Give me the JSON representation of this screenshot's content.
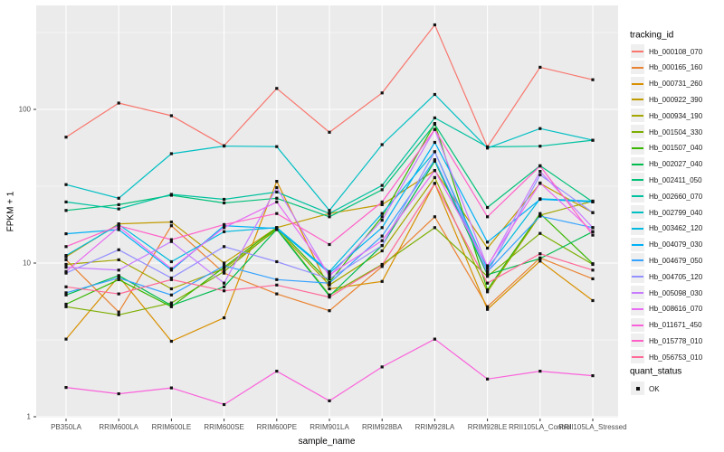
{
  "chart_data": {
    "type": "line",
    "title": "",
    "xlabel": "sample_name",
    "ylabel": "FPKM + 1",
    "y_scale": "log10",
    "y_ticks": [
      "1",
      "10",
      "100"
    ],
    "y_tick_values": [
      1,
      10,
      100
    ],
    "y_minor_values": [
      3.162,
      31.62,
      316.2
    ],
    "ylim": [
      1,
      500
    ],
    "grid": "on",
    "legend_position": "right",
    "legend_title": "tracking_id",
    "legend2_title": "quant_status",
    "legend2_items": [
      "OK"
    ],
    "marker": "square",
    "point_color": "#111111",
    "categories": [
      "PB350LA",
      "RRIM600LA",
      "RRIM600LE",
      "RRIM600SE",
      "RRIM600PE",
      "RRIM901LA",
      "RRIM928BA",
      "RRIM928LA",
      "RRIM928LE",
      "RRII105LA_Control",
      "RRII105LA_Stressed"
    ],
    "series": [
      {
        "name": "Hb_000108_070",
        "color": "#F8766D",
        "values": [
          66,
          110,
          91,
          58,
          137,
          71,
          128,
          355,
          57,
          188,
          156
        ]
      },
      {
        "name": "Hb_000165_160",
        "color": "#EA8331",
        "values": [
          10.5,
          4.8,
          17.5,
          8.6,
          6.3,
          4.9,
          9.5,
          20,
          5.2,
          10.8,
          7.9
        ]
      },
      {
        "name": "Hb_000731_260",
        "color": "#D89000",
        "values": [
          3.2,
          8.2,
          3.1,
          4.4,
          34,
          6.8,
          7.6,
          33,
          5.0,
          10.3,
          5.7
        ]
      },
      {
        "name": "Hb_000922_390",
        "color": "#C09B00",
        "values": [
          11,
          18,
          18.5,
          10,
          17,
          21,
          24,
          40,
          12.5,
          33,
          21.3
        ]
      },
      {
        "name": "Hb_000934_190",
        "color": "#A3A500",
        "values": [
          9.8,
          10.5,
          6.8,
          9.2,
          16.5,
          7.2,
          12,
          36,
          6.5,
          20.5,
          25.3
        ]
      },
      {
        "name": "Hb_001504_330",
        "color": "#7CAE00",
        "values": [
          5.2,
          4.6,
          5.5,
          8.8,
          16.8,
          6.2,
          9.8,
          17,
          8.2,
          15.6,
          9.8
        ]
      },
      {
        "name": "Hb_001507_040",
        "color": "#39B600",
        "values": [
          5.4,
          7.8,
          5.2,
          9.4,
          17,
          7.5,
          20,
          81,
          6.7,
          21,
          9.9
        ]
      },
      {
        "name": "Hb_002027_040",
        "color": "#00BB4E",
        "values": [
          6.2,
          8.3,
          5.3,
          7.0,
          16.6,
          6.1,
          13,
          46,
          8.4,
          10.7,
          16
        ]
      },
      {
        "name": "Hb_002411_050",
        "color": "#00C079",
        "values": [
          22,
          24,
          27.6,
          24.6,
          26.4,
          20,
          30,
          80,
          23,
          43,
          25
        ]
      },
      {
        "name": "Hb_002660_070",
        "color": "#00C19F",
        "values": [
          25,
          22.5,
          28,
          26,
          29,
          21,
          32,
          88,
          57,
          57.6,
          63
        ]
      },
      {
        "name": "Hb_002799_040",
        "color": "#00BFC4",
        "values": [
          32.4,
          26.4,
          51.5,
          57.7,
          57.2,
          22,
          59,
          125,
          56,
          75,
          63
        ]
      },
      {
        "name": "Hb_003462_120",
        "color": "#00BAE0",
        "values": [
          11.2,
          17.8,
          10.2,
          16,
          17,
          8.8,
          21,
          53,
          9.2,
          26.2,
          25.3
        ]
      },
      {
        "name": "Hb_004079_030",
        "color": "#00B0F6",
        "values": [
          15.5,
          16.5,
          9.0,
          17.5,
          16.8,
          8.6,
          17,
          61,
          13.7,
          26,
          25
        ]
      },
      {
        "name": "Hb_004679_050",
        "color": "#35A2FF",
        "values": [
          6.4,
          8.0,
          6.2,
          9.6,
          7.8,
          7.4,
          15,
          47,
          8.8,
          20.2,
          17
        ]
      },
      {
        "name": "Hb_004705_120",
        "color": "#9590FF",
        "values": [
          8.6,
          12.2,
          8.0,
          12.8,
          10.2,
          7.9,
          13,
          53,
          8.6,
          37.5,
          21.3
        ]
      },
      {
        "name": "Hb_005098_030",
        "color": "#C77CFF",
        "values": [
          9.4,
          9.0,
          13.8,
          7.4,
          31,
          8.2,
          19,
          74,
          9.4,
          39.5,
          17
        ]
      },
      {
        "name": "Hb_008616_070",
        "color": "#E76BF3",
        "values": [
          8.8,
          17.2,
          9.2,
          17,
          25,
          8.4,
          14,
          40,
          9.6,
          33.2,
          16
        ]
      },
      {
        "name": "Hb_011671_450",
        "color": "#FA62DB",
        "values": [
          1.55,
          1.41,
          1.54,
          1.2,
          1.98,
          1.27,
          2.11,
          3.2,
          1.76,
          1.98,
          1.85
        ]
      },
      {
        "name": "Hb_015778_010",
        "color": "#FF61C9",
        "values": [
          12.8,
          17.5,
          14.2,
          17.8,
          21,
          13.2,
          25,
          74,
          20,
          42.8,
          15.2
        ]
      },
      {
        "name": "Hb_056753_010",
        "color": "#FF6A98",
        "values": [
          7.0,
          6.3,
          7.8,
          6.6,
          7.2,
          6.0,
          9.7,
          33,
          7.4,
          11.5,
          9.0
        ]
      }
    ]
  },
  "colors": {
    "panel_bg": "#EBEBEB",
    "grid": "#FFFFFF",
    "tick": "#333333",
    "tick_text": "#4d4d4d",
    "legend_key_bg": "#EFEFEF"
  }
}
